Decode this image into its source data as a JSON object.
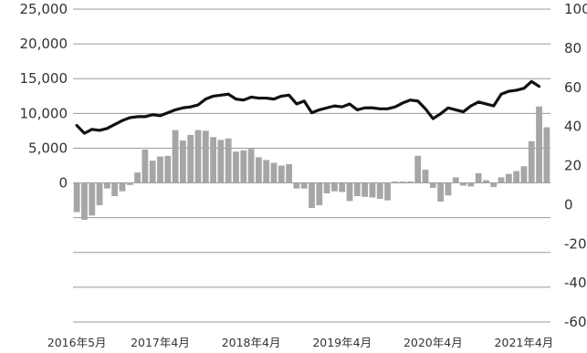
{
  "chart_data": {
    "type": "bar+line",
    "title": "",
    "y_left": {
      "ticks": [
        "25,000",
        "20,000",
        "15,000",
        "10,000",
        "5,000",
        "0"
      ],
      "range": [
        -20000,
        25000
      ]
    },
    "y_right": {
      "ticks": [
        "100",
        "80",
        "60",
        "40",
        "20",
        "0",
        "-20",
        "-40",
        "-60"
      ],
      "range": [
        -60,
        100
      ]
    },
    "x_ticks": [
      "2016年5月",
      "2017年4月",
      "2018年4月",
      "2019年4月",
      "2020年4月",
      "2021年4月"
    ],
    "x_tick_index": [
      0,
      11,
      23,
      35,
      47,
      59
    ],
    "grid": true,
    "series": [
      {
        "kind": "bar",
        "axis": "left",
        "color": "#a6a6a6",
        "values": [
          -4200,
          -5300,
          -4700,
          -3200,
          -800,
          -1900,
          -1200,
          -300,
          1500,
          4800,
          3200,
          3800,
          3900,
          7600,
          6100,
          6900,
          7600,
          7500,
          6600,
          6200,
          6400,
          4500,
          4700,
          4900,
          3700,
          3300,
          2900,
          2500,
          2700,
          -800,
          -800,
          -3600,
          -3200,
          -1500,
          -1200,
          -1300,
          -2600,
          -1900,
          -2000,
          -2100,
          -2300,
          -2500,
          200,
          200,
          200,
          3900,
          1900,
          -700,
          -2700,
          -1800,
          800,
          -400,
          -500,
          1400,
          400,
          -600,
          800,
          1300,
          1700,
          2400,
          6000,
          11000,
          8000
        ],
        "start_index": 0
      },
      {
        "kind": "line",
        "axis": "right",
        "color": "#111111",
        "values": [
          40.5,
          36.5,
          38.5,
          38,
          39,
          41,
          43,
          44.5,
          45,
          45,
          46,
          45.5,
          47,
          48.5,
          49.5,
          50,
          51,
          54,
          55.5,
          56,
          56.5,
          54,
          53.5,
          55,
          54.5,
          54.5,
          54,
          55.5,
          56,
          51.5,
          53,
          47,
          48.5,
          49.5,
          50.5,
          50,
          51.5,
          48.5,
          49.5,
          49.5,
          49,
          49,
          50,
          52,
          53.5,
          53,
          49,
          44,
          46.5,
          49.5,
          48.5,
          47.5,
          50.5,
          52.5,
          51.5,
          50.5,
          56.5,
          58,
          58.5,
          59.5,
          63,
          60.5
        ]
      }
    ]
  }
}
